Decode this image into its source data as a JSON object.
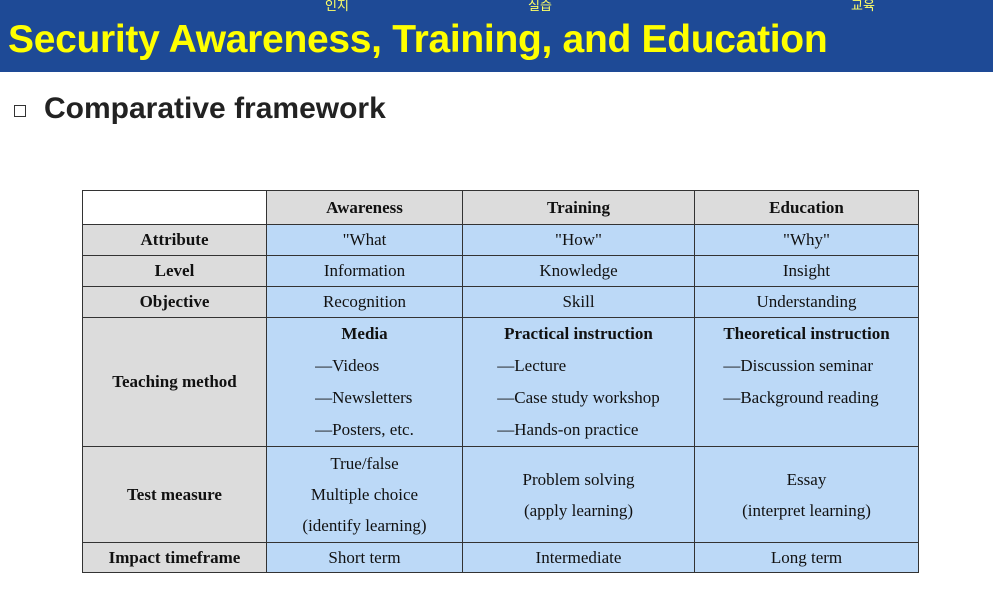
{
  "header": {
    "title": "Security Awareness, Training, and Education",
    "annotations": [
      "인지",
      "실습",
      "교육"
    ]
  },
  "subheading": "Comparative framework",
  "table": {
    "columns": [
      "Awareness",
      "Training",
      "Education"
    ],
    "rows": [
      {
        "label": "Attribute",
        "cells": [
          "\"What",
          "\"How\"",
          "\"Why\""
        ]
      },
      {
        "label": "Level",
        "cells": [
          "Information",
          "Knowledge",
          "Insight"
        ]
      },
      {
        "label": "Objective",
        "cells": [
          "Recognition",
          "Skill",
          "Understanding"
        ]
      }
    ],
    "teaching": {
      "label": "Teaching method",
      "cols": [
        {
          "title": "Media",
          "items": [
            "—Videos",
            "—Newsletters",
            "—Posters, etc."
          ]
        },
        {
          "title": "Practical instruction",
          "items": [
            "—Lecture",
            "—Case study workshop",
            "—Hands-on practice"
          ]
        },
        {
          "title": "Theoretical instruction",
          "items": [
            "—Discussion seminar",
            "—Background reading"
          ]
        }
      ]
    },
    "test": {
      "label": "Test measure",
      "cols": [
        [
          "True/false",
          "Multiple choice",
          "(identify learning)"
        ],
        [
          "Problem solving",
          "(apply learning)"
        ],
        [
          "Essay",
          "(interpret learning)"
        ]
      ]
    },
    "impact": {
      "label": "Impact timeframe",
      "cells": [
        "Short term",
        "Intermediate",
        "Long term"
      ]
    }
  },
  "colors": {
    "header_bg": "#1e4a96",
    "title": "#ffff00",
    "cell_bg": "#bcd9f7",
    "header_cell_bg": "#dcdcdc"
  }
}
